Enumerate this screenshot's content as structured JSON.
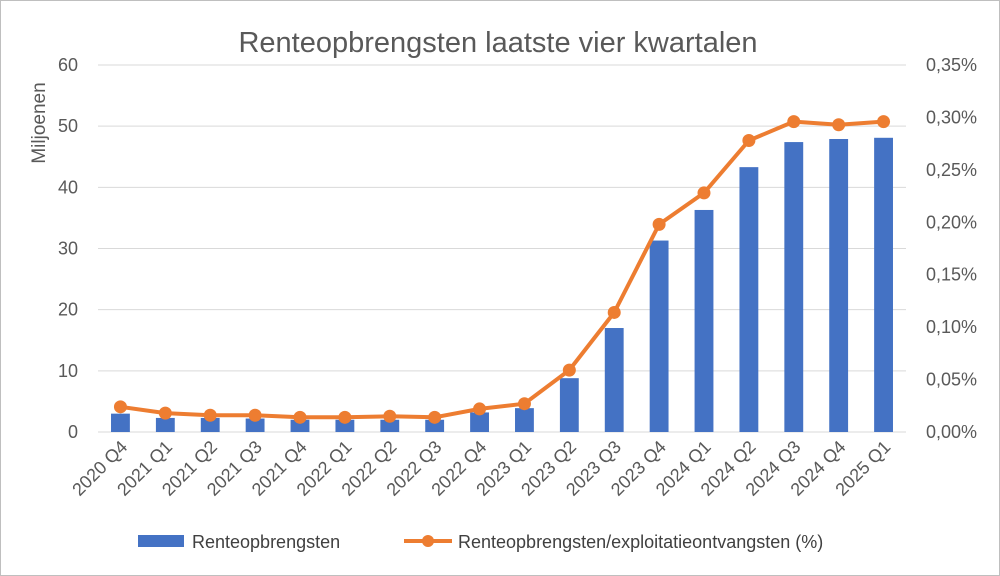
{
  "chart_data": {
    "type": "bar",
    "title": "Renteopbrengsten laatste vier kwartalen",
    "ylabel": "Miljoenen",
    "ylim": [
      0,
      60
    ],
    "y_ticks": [
      "0",
      "10",
      "20",
      "30",
      "40",
      "50",
      "60"
    ],
    "y2lim": [
      0,
      0.35
    ],
    "y2_ticks": [
      "0,00%",
      "0,05%",
      "0,10%",
      "0,15%",
      "0,20%",
      "0,25%",
      "0,30%",
      "0,35%"
    ],
    "grid": true,
    "legend_position": "bottom",
    "categories": [
      "2020 Q4",
      "2021 Q1",
      "2021 Q2",
      "2021 Q3",
      "2021 Q4",
      "2022 Q1",
      "2022 Q2",
      "2022 Q3",
      "2022 Q4",
      "2023 Q1",
      "2023 Q2",
      "2023 Q3",
      "2023 Q4",
      "2024 Q1",
      "2024 Q2",
      "2024 Q3",
      "2024 Q4",
      "2025 Q1"
    ],
    "series": [
      {
        "name": "Renteopbrengsten",
        "type": "bar",
        "axis": "left",
        "color": "#4472c4",
        "values": [
          3.0,
          2.3,
          2.3,
          2.2,
          2.0,
          2.0,
          2.0,
          2.0,
          3.2,
          3.9,
          8.8,
          17.0,
          31.3,
          36.3,
          43.3,
          47.4,
          47.9,
          48.1
        ]
      },
      {
        "name": "Renteopbrengsten/exploitatieontvangsten (%)",
        "type": "line",
        "axis": "right",
        "color": "#ed7d31",
        "values": [
          0.024,
          0.018,
          0.016,
          0.016,
          0.014,
          0.014,
          0.015,
          0.014,
          0.022,
          0.027,
          0.059,
          0.114,
          0.198,
          0.228,
          0.278,
          0.296,
          0.293,
          0.296
        ]
      }
    ]
  }
}
